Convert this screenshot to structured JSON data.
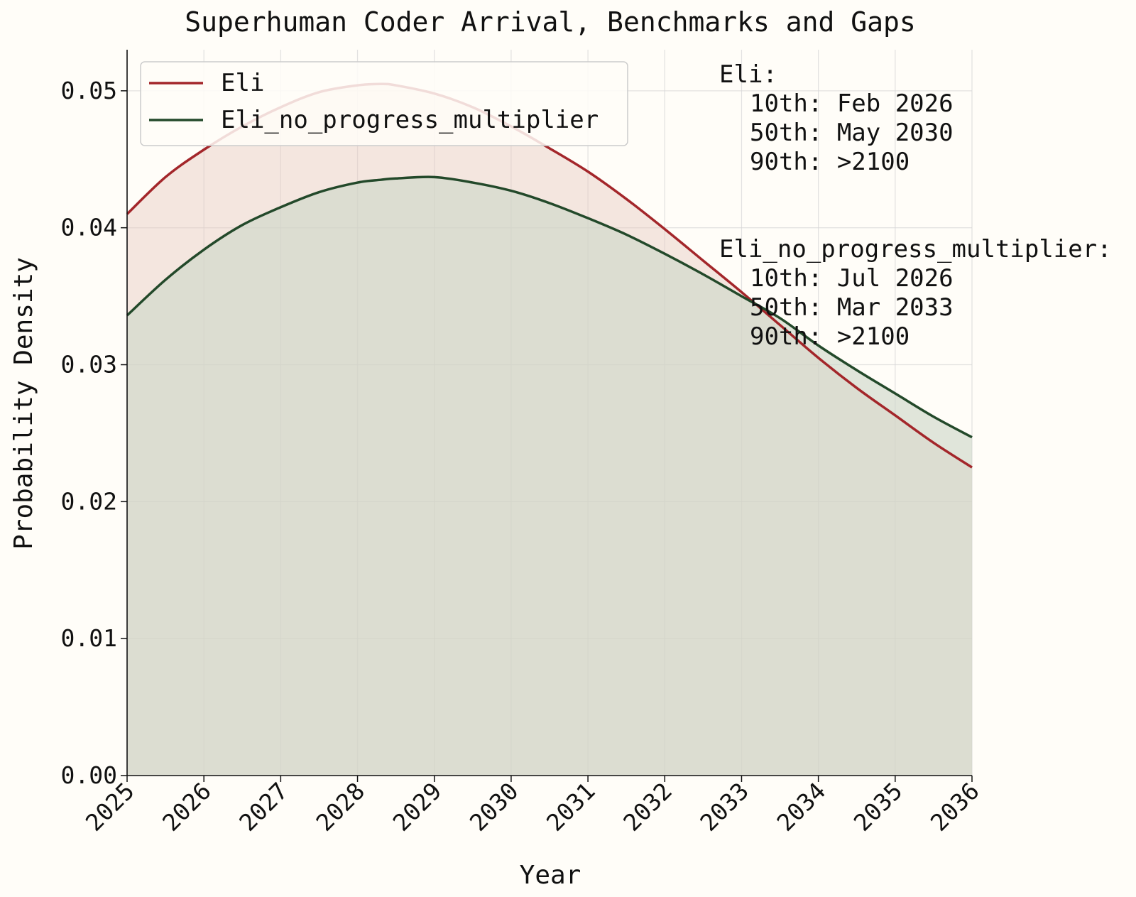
{
  "chart_data": {
    "type": "area",
    "title": "Superhuman Coder Arrival, Benchmarks and Gaps",
    "xlabel": "Year",
    "ylabel": "Probability Density",
    "xlim": [
      2025,
      2036
    ],
    "ylim": [
      0,
      0.053
    ],
    "x_ticks": [
      "2025",
      "2026",
      "2027",
      "2028",
      "2029",
      "2030",
      "2031",
      "2032",
      "2033",
      "2034",
      "2035",
      "2036"
    ],
    "y_ticks": [
      "0.00",
      "0.01",
      "0.02",
      "0.03",
      "0.04",
      "0.05"
    ],
    "grid": true,
    "legend_position": "top-left",
    "x": [
      2025,
      2025.5,
      2026,
      2026.5,
      2027,
      2027.5,
      2028,
      2028.3,
      2028.5,
      2029,
      2029.5,
      2030,
      2030.5,
      2031,
      2031.5,
      2032,
      2032.5,
      2033,
      2033.5,
      2034,
      2034.5,
      2035,
      2035.5,
      2036
    ],
    "series": [
      {
        "name": "Eli",
        "color": "#a3262a",
        "fill": "#e6c9c1",
        "values": [
          0.041,
          0.0437,
          0.0457,
          0.0474,
          0.0488,
          0.0499,
          0.0504,
          0.0505,
          0.0504,
          0.0498,
          0.0488,
          0.0474,
          0.0458,
          0.0441,
          0.0421,
          0.0399,
          0.0376,
          0.0353,
          0.0329,
          0.0305,
          0.0283,
          0.0263,
          0.0243,
          0.0225
        ]
      },
      {
        "name": "Eli_no_progress_multiplier",
        "color": "#23492a",
        "fill": "#cdd6c8",
        "values": [
          0.0336,
          0.0362,
          0.0384,
          0.0402,
          0.0415,
          0.0426,
          0.0433,
          0.0435,
          0.0436,
          0.0437,
          0.0433,
          0.0427,
          0.0418,
          0.0407,
          0.0395,
          0.0381,
          0.0366,
          0.035,
          0.0334,
          0.0314,
          0.0296,
          0.0279,
          0.0262,
          0.0247
        ]
      }
    ],
    "annotations": [
      {
        "name": "Eli:",
        "p10": "10th: Feb 2026",
        "p50": "50th: May 2030",
        "p90": "90th: >2100"
      },
      {
        "name": "Eli_no_progress_multiplier:",
        "p10": "10th: Jul 2026",
        "p50": "50th: Mar 2033",
        "p90": "90th: >2100"
      }
    ]
  }
}
